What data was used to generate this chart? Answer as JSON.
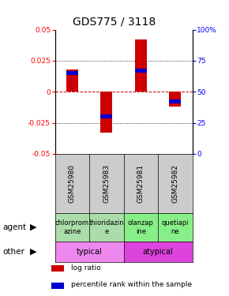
{
  "title": "GDS775 / 3118",
  "samples": [
    "GSM25980",
    "GSM25983",
    "GSM25981",
    "GSM25982"
  ],
  "log_ratios": [
    0.018,
    -0.033,
    0.042,
    -0.012
  ],
  "percentile_ranks": [
    0.65,
    0.3,
    0.67,
    0.42
  ],
  "ylim": [
    -0.05,
    0.05
  ],
  "y_ticks_left": [
    -0.05,
    -0.025,
    0,
    0.025,
    0.05
  ],
  "y_ticks_right": [
    0,
    25,
    50,
    75,
    100
  ],
  "bar_color": "#cc0000",
  "pct_color": "#0000cc",
  "zero_line_color": "#cc0000",
  "grid_color": "#000000",
  "agent_labels": [
    "chlorprom\nazine",
    "thioridazin\ne",
    "olanzap\nine",
    "quetiapi\nne"
  ],
  "agent_bg_colors": [
    "#aaddaa",
    "#aaddaa",
    "#88ee88",
    "#88ee88"
  ],
  "other_labels": [
    "typical",
    "atypical"
  ],
  "other_colors": [
    "#ee88ee",
    "#dd44dd"
  ],
  "sample_box_color": "#cccccc",
  "legend_red": "log ratio",
  "legend_blue": "percentile rank within the sample",
  "title_fontsize": 10,
  "tick_fontsize": 6.5,
  "sample_fontsize": 6.5,
  "agent_fontsize": 6,
  "other_fontsize": 7,
  "legend_fontsize": 6.5
}
